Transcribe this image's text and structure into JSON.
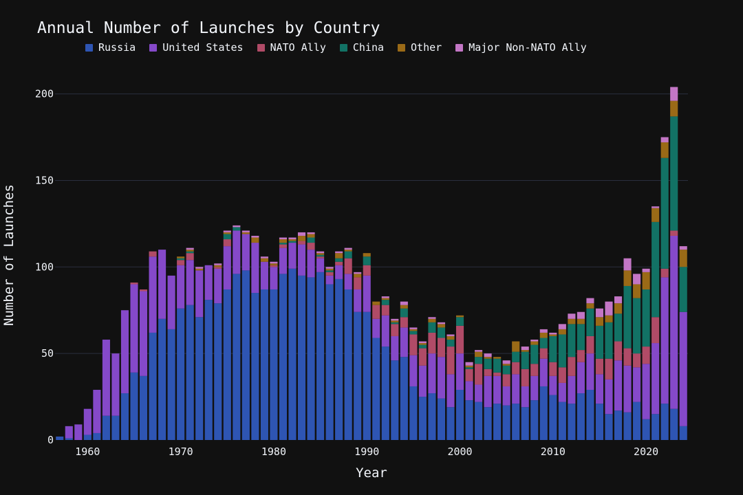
{
  "chart_data": {
    "type": "bar",
    "stacked": true,
    "title": "Annual Number of Launches by Country",
    "xlabel": "Year",
    "ylabel": "Number of Launches",
    "ylim": [
      0,
      205
    ],
    "xlim": [
      1956.5,
      2024.5
    ],
    "yticks": [
      0,
      50,
      100,
      150,
      200
    ],
    "xticks": [
      1960,
      1970,
      1980,
      1990,
      2000,
      2010,
      2020
    ],
    "grid": true,
    "legend_position": "top",
    "background": "#111111",
    "x": [
      1957,
      1958,
      1959,
      1960,
      1961,
      1962,
      1963,
      1964,
      1965,
      1966,
      1967,
      1968,
      1969,
      1970,
      1971,
      1972,
      1973,
      1974,
      1975,
      1976,
      1977,
      1978,
      1979,
      1980,
      1981,
      1982,
      1983,
      1984,
      1985,
      1986,
      1987,
      1988,
      1989,
      1990,
      1991,
      1992,
      1993,
      1994,
      1995,
      1996,
      1997,
      1998,
      1999,
      2000,
      2001,
      2002,
      2003,
      2004,
      2005,
      2006,
      2007,
      2008,
      2009,
      2010,
      2011,
      2012,
      2013,
      2014,
      2015,
      2016,
      2017,
      2018,
      2019,
      2020,
      2021,
      2022,
      2023,
      2024
    ],
    "series": [
      {
        "name": "Russia",
        "color": "#2e55b3",
        "values": [
          2,
          1,
          0,
          3,
          4,
          14,
          14,
          27,
          39,
          37,
          62,
          70,
          64,
          76,
          78,
          71,
          81,
          79,
          87,
          96,
          98,
          85,
          87,
          87,
          96,
          99,
          95,
          94,
          97,
          90,
          93,
          87,
          74,
          74,
          59,
          54,
          46,
          48,
          31,
          25,
          27,
          24,
          19,
          29,
          23,
          22,
          19,
          21,
          20,
          21,
          19,
          23,
          31,
          26,
          22,
          21,
          27,
          29,
          21,
          15,
          17,
          16,
          22,
          12,
          15,
          21,
          18,
          8
        ]
      },
      {
        "name": "United States",
        "color": "#8549c9",
        "values": [
          0,
          7,
          9,
          15,
          25,
          44,
          36,
          48,
          51,
          49,
          44,
          40,
          31,
          25,
          26,
          27,
          20,
          20,
          25,
          25,
          21,
          29,
          16,
          13,
          15,
          15,
          18,
          16,
          8,
          5,
          8,
          9,
          13,
          21,
          11,
          18,
          14,
          17,
          18,
          18,
          23,
          24,
          19,
          21,
          11,
          10,
          18,
          16,
          11,
          17,
          12,
          14,
          16,
          11,
          11,
          16,
          18,
          21,
          17,
          20,
          29,
          27,
          20,
          32,
          41,
          73,
          100,
          66
        ]
      },
      {
        "name": "NATO Ally",
        "color": "#b04b67",
        "values": [
          0,
          0,
          0,
          0,
          0,
          0,
          0,
          0,
          1,
          1,
          3,
          0,
          0,
          3,
          4,
          0,
          0,
          1,
          4,
          0,
          0,
          0,
          0,
          1,
          2,
          0,
          2,
          4,
          1,
          2,
          2,
          9,
          7,
          6,
          8,
          6,
          7,
          6,
          12,
          10,
          12,
          11,
          16,
          16,
          7,
          12,
          4,
          2,
          7,
          7,
          10,
          7,
          6,
          8,
          9,
          11,
          7,
          10,
          9,
          12,
          11,
          10,
          8,
          10,
          15,
          5,
          3,
          0
        ]
      },
      {
        "name": "China",
        "color": "#127265",
        "values": [
          0,
          0,
          0,
          0,
          0,
          0,
          0,
          0,
          0,
          0,
          0,
          0,
          0,
          1,
          1,
          0,
          0,
          0,
          3,
          2,
          0,
          0,
          0,
          0,
          1,
          1,
          0,
          3,
          1,
          1,
          2,
          4,
          0,
          5,
          0,
          3,
          1,
          5,
          2,
          2,
          6,
          6,
          4,
          5,
          1,
          4,
          6,
          8,
          5,
          6,
          10,
          11,
          6,
          15,
          19,
          19,
          15,
          16,
          19,
          21,
          16,
          36,
          32,
          33,
          55,
          64,
          66,
          26
        ]
      },
      {
        "name": "Other",
        "color": "#9a6a17",
        "values": [
          0,
          0,
          0,
          0,
          0,
          0,
          0,
          0,
          0,
          0,
          0,
          0,
          0,
          1,
          1,
          1,
          0,
          1,
          1,
          0,
          1,
          3,
          2,
          1,
          2,
          1,
          3,
          2,
          1,
          1,
          3,
          1,
          2,
          2,
          2,
          1,
          1,
          2,
          1,
          1,
          2,
          2,
          2,
          1,
          1,
          3,
          1,
          1,
          1,
          6,
          1,
          2,
          3,
          1,
          3,
          3,
          3,
          3,
          5,
          4,
          6,
          9,
          8,
          10,
          8,
          9,
          9,
          10
        ]
      },
      {
        "name": "Major Non-NATO Ally",
        "color": "#c376c5",
        "values": [
          0,
          0,
          0,
          0,
          0,
          0,
          0,
          0,
          0,
          0,
          0,
          0,
          0,
          0,
          1,
          1,
          0,
          1,
          1,
          1,
          1,
          1,
          1,
          1,
          1,
          1,
          2,
          1,
          1,
          1,
          1,
          1,
          1,
          0,
          0,
          1,
          1,
          2,
          1,
          1,
          1,
          1,
          1,
          0,
          2,
          1,
          2,
          0,
          2,
          0,
          2,
          1,
          2,
          1,
          3,
          3,
          4,
          3,
          5,
          8,
          4,
          7,
          6,
          2,
          1,
          3,
          8,
          2
        ]
      }
    ]
  }
}
